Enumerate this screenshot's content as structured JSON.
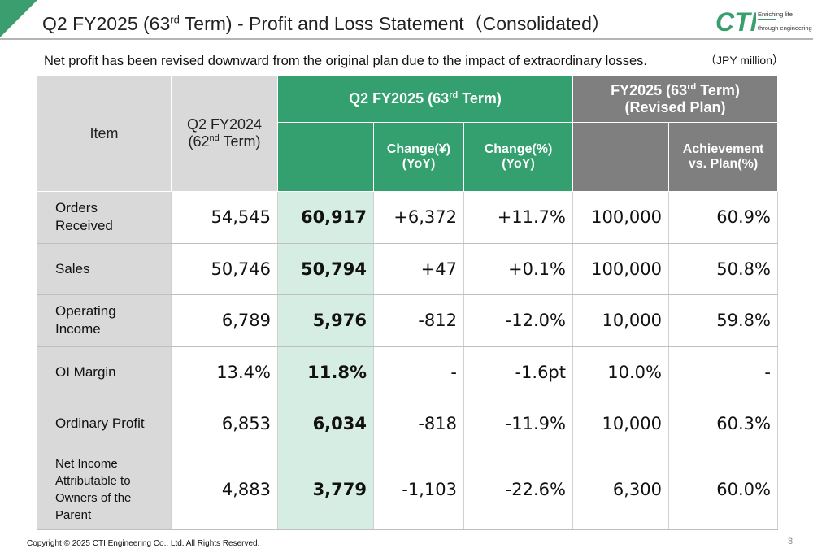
{
  "header": {
    "title_pre": "Q2 FY2025 (63",
    "title_sup": "rd",
    "title_post": " Term) - Profit and Loss Statement（Consolidated）"
  },
  "logo": {
    "mark": "CTI",
    "tagline1": "Enriching life",
    "tagline2": "through engineering"
  },
  "subtitle": "Net profit has been revised downward from the original plan due to the impact of extraordinary losses.",
  "unit": "（JPY million）",
  "table": {
    "headers": {
      "item": "Item",
      "prev_line1": "Q2 FY2024",
      "prev_line2_pre": "(62",
      "prev_line2_sup": "nd",
      "prev_line2_post": " Term)",
      "cur_pre": "Q2 FY2025 (63",
      "cur_sup": "rd",
      "cur_post": " Term)",
      "plan_line1_pre": "FY2025 (63",
      "plan_line1_sup": "rd",
      "plan_line1_post": " Term)",
      "plan_line2": "(Revised Plan)",
      "change_yen_l1": "Change(¥)",
      "change_yen_l2": "(YoY)",
      "change_pct_l1": "Change(%)",
      "change_pct_l2": "(YoY)",
      "ach_l1": "Achievement",
      "ach_l2": "vs. Plan(%)"
    },
    "rows": [
      {
        "label_l1": "Orders",
        "label_l2": "Received",
        "prev": "54,545",
        "cur": "60,917",
        "chg_yen": "+6,372",
        "chg_pct": "+11.7%",
        "plan": "100,000",
        "ach": "60.9%"
      },
      {
        "label_l1": "Sales",
        "label_l2": "",
        "prev": "50,746",
        "cur": "50,794",
        "chg_yen": "+47",
        "chg_pct": "+0.1%",
        "plan": "100,000",
        "ach": "50.8%"
      },
      {
        "label_l1": "Operating",
        "label_l2": "Income",
        "prev": "6,789",
        "cur": "5,976",
        "chg_yen": "-812",
        "chg_pct": "-12.0%",
        "plan": "10,000",
        "ach": "59.8%"
      },
      {
        "label_l1": "OI Margin",
        "label_l2": "",
        "prev": "13.4%",
        "cur": "11.8%",
        "chg_yen": "-",
        "chg_pct": "-1.6pt",
        "plan": "10.0%",
        "ach": "-"
      },
      {
        "label_l1": "Ordinary Profit",
        "label_l2": "",
        "prev": "6,853",
        "cur": "6,034",
        "chg_yen": "-818",
        "chg_pct": "-11.9%",
        "plan": "10,000",
        "ach": "60.3%"
      },
      {
        "label_l1": "Net Income",
        "label_l2": "Attributable to",
        "label_l3": "Owners of the",
        "label_l4": "Parent",
        "prev": "4,883",
        "cur": "3,779",
        "chg_yen": "-1,103",
        "chg_pct": "-22.6%",
        "plan": "6,300",
        "ach": "60.0%"
      }
    ]
  },
  "footer": {
    "copyright": "Copyright © 2025 CTI Engineering Co., Ltd. All Rights Reserved.",
    "page": "8"
  },
  "colors": {
    "accent_green": "#34a06f",
    "header_grey": "#7f7f7f",
    "item_grey": "#d9d9d9",
    "highlight_green": "#d6ede3"
  }
}
